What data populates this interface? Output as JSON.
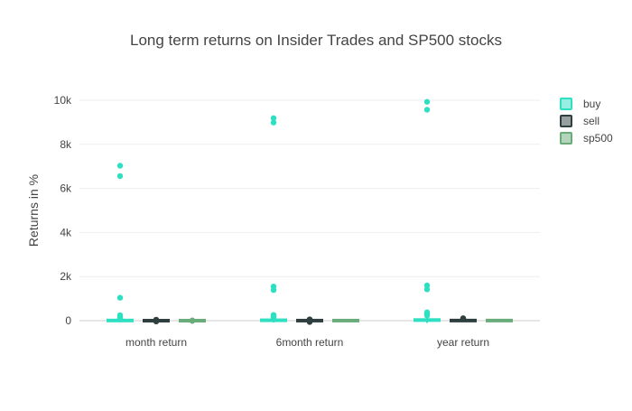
{
  "chart_data": {
    "type": "box",
    "title": "Long term returns on Insider Trades and SP500 stocks",
    "xlabel": "",
    "ylabel": "Returns in %",
    "categories": [
      "month return",
      "6month return",
      "year return"
    ],
    "ylim": [
      -400,
      10800
    ],
    "yticks": [
      0,
      2000,
      4000,
      6000,
      8000,
      10000
    ],
    "ytick_labels": [
      "0",
      "2k",
      "4k",
      "6k",
      "8k",
      "10k"
    ],
    "grid": true,
    "legend_position": "top-right",
    "series": [
      {
        "name": "buy",
        "color": "#2ee0c1",
        "boxes": [
          {
            "q1": -5,
            "median": 5,
            "q3": 20,
            "whisker_low": -40,
            "whisker_high": 60,
            "outliers": [
              7030,
              6560,
              1040,
              250,
              180,
              130,
              90
            ]
          },
          {
            "q1": -10,
            "median": 10,
            "q3": 45,
            "whisker_low": -80,
            "whisker_high": 120,
            "outliers": [
              9190,
              8990,
              1550,
              1390,
              260,
              200,
              160,
              140
            ]
          },
          {
            "q1": -15,
            "median": 15,
            "q3": 70,
            "whisker_low": -100,
            "whisker_high": 170,
            "outliers": [
              9930,
              9570,
              1600,
              1420,
              380,
              320,
              270,
              230
            ]
          }
        ]
      },
      {
        "name": "sell",
        "color": "#2f3f3f",
        "boxes": [
          {
            "q1": -10,
            "median": 0,
            "q3": 10,
            "whisker_low": -30,
            "whisker_high": 30,
            "outliers": [
              45,
              25,
              -25,
              -35
            ]
          },
          {
            "q1": -15,
            "median": 0,
            "q3": 20,
            "whisker_low": -50,
            "whisker_high": 55,
            "outliers": [
              60,
              35,
              -45,
              -60
            ]
          },
          {
            "q1": -20,
            "median": 5,
            "q3": 30,
            "whisker_low": -60,
            "whisker_high": 80,
            "outliers": [
              110,
              90
            ]
          }
        ]
      },
      {
        "name": "sp500",
        "color": "#6aab7a",
        "boxes": [
          {
            "q1": -3,
            "median": 1,
            "q3": 4,
            "whisker_low": -10,
            "whisker_high": 12,
            "outliers": [
              10,
              -10
            ]
          },
          {
            "q1": -5,
            "median": 3,
            "q3": 10,
            "whisker_low": -20,
            "whisker_high": 25,
            "outliers": []
          },
          {
            "q1": -5,
            "median": 6,
            "q3": 15,
            "whisker_low": -25,
            "whisker_high": 35,
            "outliers": []
          }
        ]
      }
    ]
  }
}
